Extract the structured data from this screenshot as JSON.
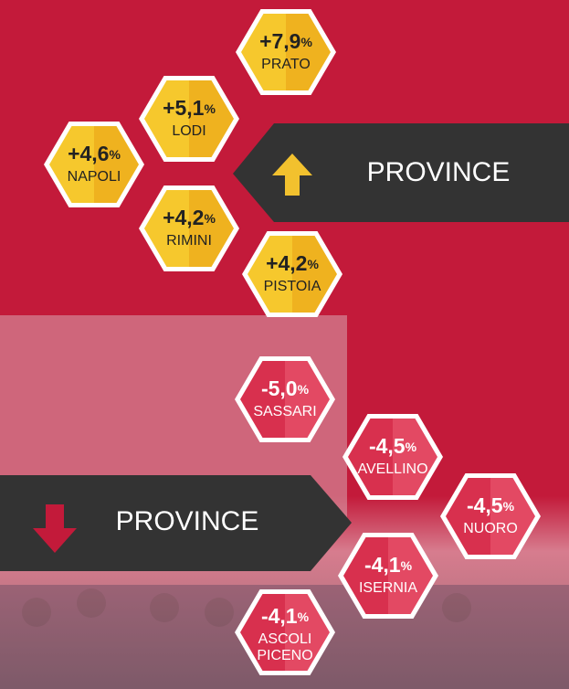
{
  "increase": {
    "label": "PROVINCE",
    "items": [
      {
        "value": "+7,9",
        "unit": "%",
        "name": "PRATO"
      },
      {
        "value": "+5,1",
        "unit": "%",
        "name": "LODI"
      },
      {
        "value": "+4,6",
        "unit": "%",
        "name": "NAPOLI"
      },
      {
        "value": "+4,2",
        "unit": "%",
        "name": "RIMINI"
      },
      {
        "value": "+4,2",
        "unit": "%",
        "name": "PISTOIA"
      }
    ]
  },
  "decrease": {
    "label": "PROVINCE",
    "items": [
      {
        "value": "-5,0",
        "unit": "%",
        "name": "SASSARI"
      },
      {
        "value": "-4,5",
        "unit": "%",
        "name": "AVELLINO"
      },
      {
        "value": "-4,5",
        "unit": "%",
        "name": "NUORO"
      },
      {
        "value": "-4,1",
        "unit": "%",
        "name": "ISERNIA"
      },
      {
        "value": "-4,1",
        "unit": "%",
        "name": "ASCOLI PICENO"
      }
    ]
  }
}
